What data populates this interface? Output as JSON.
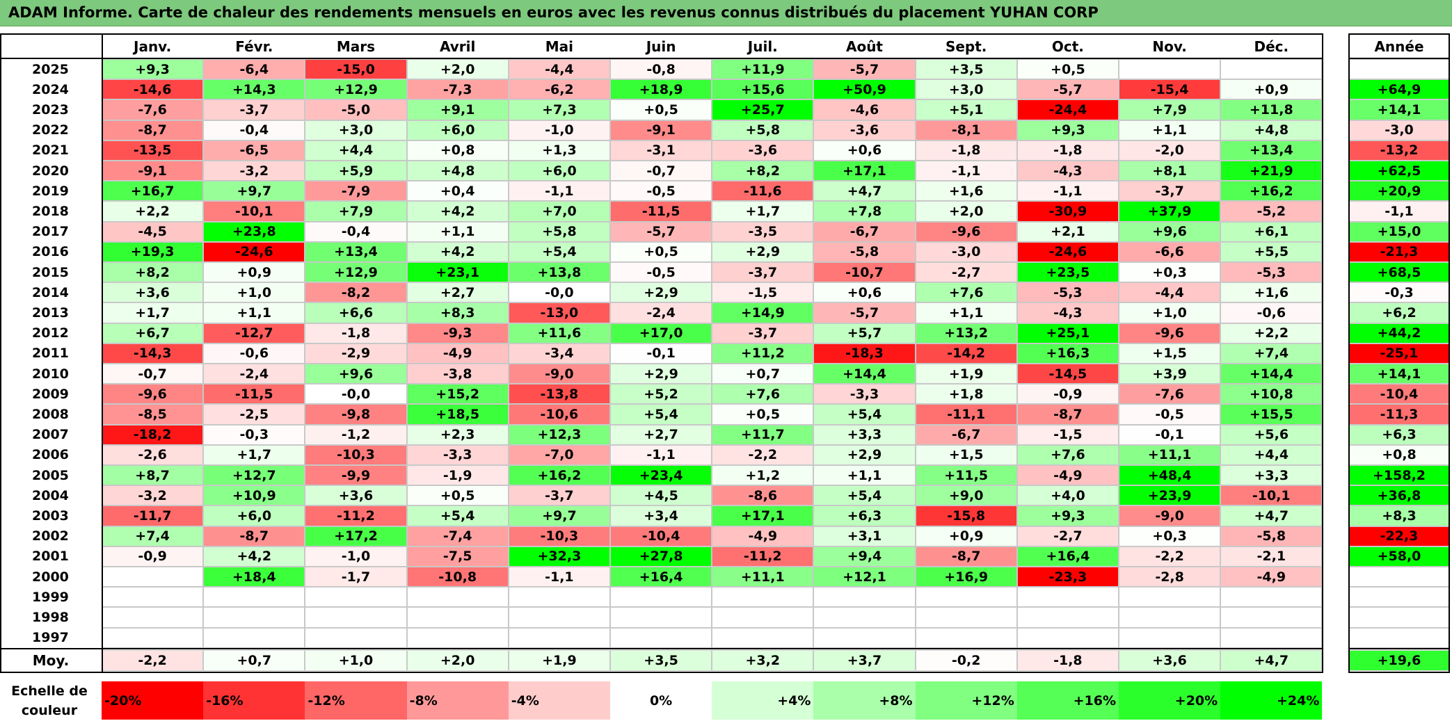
{
  "title": "ADAM Informe. Carte de chaleur des rendements mensuels en euros avec les revenus connus distribués du placement YUHAN CORP",
  "chart_data": {
    "type": "heatmap",
    "title": "ADAM Informe. Carte de chaleur des rendements mensuels en euros avec les revenus connus distribués du placement YUHAN CORP",
    "columns": [
      "Janv.",
      "Févr.",
      "Mars",
      "Avril",
      "Mai",
      "Juin",
      "Juil.",
      "Août",
      "Sept.",
      "Oct.",
      "Nov.",
      "Déc."
    ],
    "year_column_label": "Année",
    "rows": [
      {
        "year": "2025",
        "months": [
          "+9,3",
          "-6,4",
          "-15,0",
          "+2,0",
          "-4,4",
          "-0,8",
          "+11,9",
          "-5,7",
          "+3,5",
          "+0,5",
          "",
          ""
        ],
        "annual": ""
      },
      {
        "year": "2024",
        "months": [
          "-14,6",
          "+14,3",
          "+12,9",
          "-7,3",
          "-6,2",
          "+18,9",
          "+15,6",
          "+50,9",
          "+3,0",
          "-5,7",
          "-15,4",
          "+0,9"
        ],
        "annual": "+64,9"
      },
      {
        "year": "2023",
        "months": [
          "-7,6",
          "-3,7",
          "-5,0",
          "+9,1",
          "+7,3",
          "+0,5",
          "+25,7",
          "-4,6",
          "+5,1",
          "-24,4",
          "+7,9",
          "+11,8"
        ],
        "annual": "+14,1"
      },
      {
        "year": "2022",
        "months": [
          "-8,7",
          "-0,4",
          "+3,0",
          "+6,0",
          "-1,0",
          "-9,1",
          "+5,8",
          "-3,6",
          "-8,1",
          "+9,3",
          "+1,1",
          "+4,8"
        ],
        "annual": "-3,0"
      },
      {
        "year": "2021",
        "months": [
          "-13,5",
          "-6,5",
          "+4,4",
          "+0,8",
          "+1,3",
          "-3,1",
          "-3,6",
          "+0,6",
          "-1,8",
          "-1,8",
          "-2,0",
          "+13,4"
        ],
        "annual": "-13,2"
      },
      {
        "year": "2020",
        "months": [
          "-9,1",
          "-3,2",
          "+5,9",
          "+4,8",
          "+6,0",
          "-0,7",
          "+8,2",
          "+17,1",
          "-1,1",
          "-4,3",
          "+8,1",
          "+21,9"
        ],
        "annual": "+62,5"
      },
      {
        "year": "2019",
        "months": [
          "+16,7",
          "+9,7",
          "-7,9",
          "+0,4",
          "-1,1",
          "-0,5",
          "-11,6",
          "+4,7",
          "+1,6",
          "-1,1",
          "-3,7",
          "+16,2"
        ],
        "annual": "+20,9"
      },
      {
        "year": "2018",
        "months": [
          "+2,2",
          "-10,1",
          "+7,9",
          "+4,2",
          "+7,0",
          "-11,5",
          "+1,7",
          "+7,8",
          "+2,0",
          "-30,9",
          "+37,9",
          "-5,2"
        ],
        "annual": "-1,1"
      },
      {
        "year": "2017",
        "months": [
          "-4,5",
          "+23,8",
          "-0,4",
          "+1,1",
          "+5,8",
          "-5,7",
          "-3,5",
          "-6,7",
          "-9,6",
          "+2,1",
          "+9,6",
          "+6,1"
        ],
        "annual": "+15,0"
      },
      {
        "year": "2016",
        "months": [
          "+19,3",
          "-24,6",
          "+13,4",
          "+4,2",
          "+5,4",
          "+0,5",
          "+2,9",
          "-5,8",
          "-3,0",
          "-24,6",
          "-6,6",
          "+5,5"
        ],
        "annual": "-21,3"
      },
      {
        "year": "2015",
        "months": [
          "+8,2",
          "+0,9",
          "+12,9",
          "+23,1",
          "+13,8",
          "-0,5",
          "-3,7",
          "-10,7",
          "-2,7",
          "+23,5",
          "+0,3",
          "-5,3"
        ],
        "annual": "+68,5"
      },
      {
        "year": "2014",
        "months": [
          "+3,6",
          "+1,0",
          "-8,2",
          "+2,7",
          "-0,0",
          "+2,9",
          "-1,5",
          "+0,6",
          "+7,6",
          "-5,3",
          "-4,4",
          "+1,6"
        ],
        "annual": "-0,3"
      },
      {
        "year": "2013",
        "months": [
          "+1,7",
          "+1,1",
          "+6,6",
          "+8,3",
          "-13,0",
          "-2,4",
          "+14,9",
          "-5,7",
          "+1,1",
          "-4,3",
          "+1,0",
          "-0,6"
        ],
        "annual": "+6,2"
      },
      {
        "year": "2012",
        "months": [
          "+6,7",
          "-12,7",
          "-1,8",
          "-9,3",
          "+11,6",
          "+17,0",
          "-3,7",
          "+5,7",
          "+13,2",
          "+25,1",
          "-9,6",
          "+2,2"
        ],
        "annual": "+44,2"
      },
      {
        "year": "2011",
        "months": [
          "-14,3",
          "-0,6",
          "-2,9",
          "-4,9",
          "-3,4",
          "-0,1",
          "+11,2",
          "-18,3",
          "-14,2",
          "+16,3",
          "+1,5",
          "+7,4"
        ],
        "annual": "-25,1"
      },
      {
        "year": "2010",
        "months": [
          "-0,7",
          "-2,4",
          "+9,6",
          "-3,8",
          "-9,0",
          "+2,9",
          "+0,7",
          "+14,4",
          "+1,9",
          "-14,5",
          "+3,9",
          "+14,4"
        ],
        "annual": "+14,1"
      },
      {
        "year": "2009",
        "months": [
          "-9,6",
          "-11,5",
          "-0,0",
          "+15,2",
          "-13,8",
          "+5,2",
          "+7,6",
          "-3,3",
          "+1,8",
          "-0,9",
          "-7,6",
          "+10,8"
        ],
        "annual": "-10,4"
      },
      {
        "year": "2008",
        "months": [
          "-8,5",
          "-2,5",
          "-9,8",
          "+18,5",
          "-10,6",
          "+5,4",
          "+0,5",
          "+5,4",
          "-11,1",
          "-8,7",
          "-0,5",
          "+15,5"
        ],
        "annual": "-11,3"
      },
      {
        "year": "2007",
        "months": [
          "-18,2",
          "-0,3",
          "-1,2",
          "+2,3",
          "+12,3",
          "+2,7",
          "+11,7",
          "+3,3",
          "-6,7",
          "-1,5",
          "-0,1",
          "+5,6"
        ],
        "annual": "+6,3"
      },
      {
        "year": "2006",
        "months": [
          "-2,6",
          "+1,7",
          "-10,3",
          "-3,3",
          "-7,0",
          "-1,1",
          "-2,2",
          "+2,9",
          "+1,5",
          "+7,6",
          "+11,1",
          "+4,4"
        ],
        "annual": "+0,8"
      },
      {
        "year": "2005",
        "months": [
          "+8,7",
          "+12,7",
          "-9,9",
          "-1,9",
          "+16,2",
          "+23,4",
          "+1,2",
          "+1,1",
          "+11,5",
          "-4,9",
          "+48,4",
          "+3,3"
        ],
        "annual": "+158,2"
      },
      {
        "year": "2004",
        "months": [
          "-3,2",
          "+10,9",
          "+3,6",
          "+0,5",
          "-3,7",
          "+4,5",
          "-8,6",
          "+5,4",
          "+9,0",
          "+4,0",
          "+23,9",
          "-10,1"
        ],
        "annual": "+36,8"
      },
      {
        "year": "2003",
        "months": [
          "-11,7",
          "+6,0",
          "-11,2",
          "+5,4",
          "+9,7",
          "+3,4",
          "+17,1",
          "+6,3",
          "-15,8",
          "+9,3",
          "-9,0",
          "+4,7"
        ],
        "annual": "+8,3"
      },
      {
        "year": "2002",
        "months": [
          "+7,4",
          "-8,7",
          "+17,2",
          "-7,4",
          "-10,3",
          "-10,4",
          "-4,9",
          "+3,1",
          "+0,9",
          "-2,7",
          "+0,3",
          "-5,8"
        ],
        "annual": "-22,3"
      },
      {
        "year": "2001",
        "months": [
          "-0,9",
          "+4,2",
          "-1,0",
          "-7,5",
          "+32,3",
          "+27,8",
          "-11,2",
          "+9,4",
          "-8,7",
          "+16,4",
          "-2,2",
          "-2,1"
        ],
        "annual": "+58,0"
      },
      {
        "year": "2000",
        "months": [
          "",
          "+18,4",
          "-1,7",
          "-10,8",
          "-1,1",
          "+16,4",
          "+11,1",
          "+12,1",
          "+16,9",
          "-23,3",
          "-2,8",
          "-4,9"
        ],
        "annual": ""
      },
      {
        "year": "1999",
        "months": [
          "",
          "",
          "",
          "",
          "",
          "",
          "",
          "",
          "",
          "",
          "",
          ""
        ],
        "annual": ""
      },
      {
        "year": "1998",
        "months": [
          "",
          "",
          "",
          "",
          "",
          "",
          "",
          "",
          "",
          "",
          "",
          ""
        ],
        "annual": ""
      },
      {
        "year": "1997",
        "months": [
          "",
          "",
          "",
          "",
          "",
          "",
          "",
          "",
          "",
          "",
          "",
          ""
        ],
        "annual": ""
      }
    ],
    "average": {
      "label": "Moy.",
      "months": [
        "-2,2",
        "+0,7",
        "+1,0",
        "+2,0",
        "+1,9",
        "+3,5",
        "+3,2",
        "+3,7",
        "-0,2",
        "-1,8",
        "+3,6",
        "+4,7"
      ],
      "annual": "+19,6"
    },
    "color_scale": {
      "label": "Echelle de couleur",
      "steps": [
        "-20%",
        "-16%",
        "-12%",
        "-8%",
        "-4%",
        "0%",
        "+4%",
        "+8%",
        "+12%",
        "+16%",
        "+20%",
        "+24%"
      ]
    }
  }
}
